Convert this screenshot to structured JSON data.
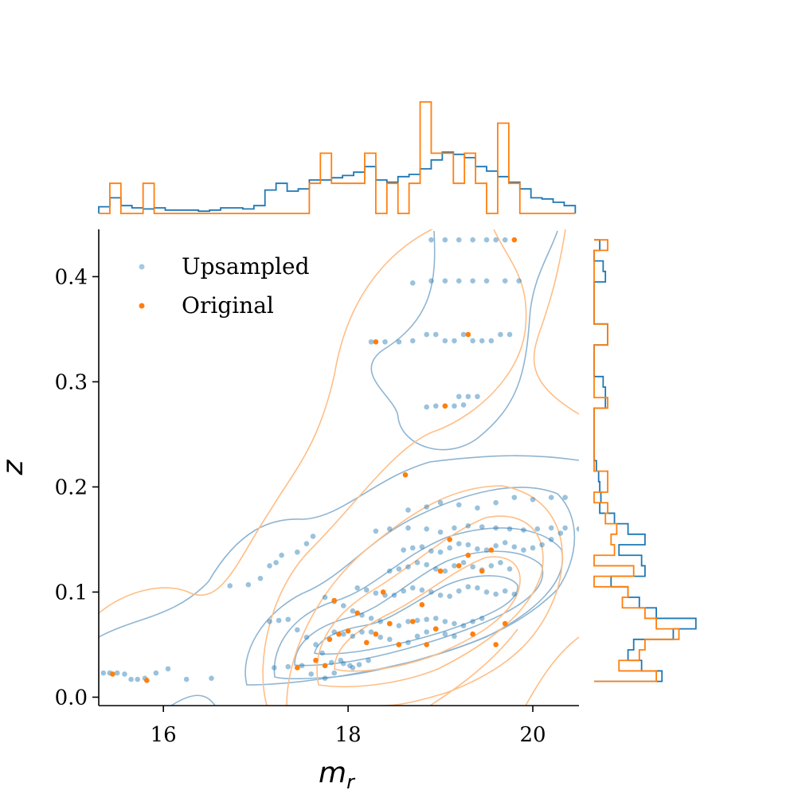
{
  "chart_data": {
    "type": "scatter",
    "title": "",
    "xlabel": "m",
    "xlabel_sub": "r",
    "ylabel": "z",
    "xlim": [
      15.3,
      20.5
    ],
    "ylim": [
      -0.008,
      0.445
    ],
    "x_ticks": [
      16,
      18,
      20
    ],
    "x_tick_labels": [
      "16",
      "18",
      "20"
    ],
    "y_ticks": [
      0.0,
      0.1,
      0.2,
      0.3,
      0.4
    ],
    "y_tick_labels": [
      "0.0",
      "0.1",
      "0.2",
      "0.3",
      "0.4"
    ],
    "legend_position": "upper-left",
    "colors": {
      "upsampled": "#1f77b4",
      "original": "#ff7f0e",
      "upsampled_contour": "#8fb5d2",
      "original_contour": "#ffbe86"
    },
    "series": [
      {
        "name": "Upsampled",
        "points": [
          [
            15.35,
            0.023
          ],
          [
            15.42,
            0.023
          ],
          [
            15.5,
            0.023
          ],
          [
            15.58,
            0.022
          ],
          [
            15.65,
            0.017
          ],
          [
            15.72,
            0.017
          ],
          [
            15.8,
            0.018
          ],
          [
            15.92,
            0.023
          ],
          [
            16.05,
            0.027
          ],
          [
            16.25,
            0.017
          ],
          [
            16.52,
            0.018
          ],
          [
            16.72,
            0.106
          ],
          [
            16.92,
            0.107
          ],
          [
            17.05,
            0.113
          ],
          [
            17.15,
            0.125
          ],
          [
            17.22,
            0.128
          ],
          [
            17.28,
            0.135
          ],
          [
            17.45,
            0.138
          ],
          [
            17.55,
            0.146
          ],
          [
            17.62,
            0.153
          ],
          [
            17.15,
            0.072
          ],
          [
            17.25,
            0.073
          ],
          [
            17.35,
            0.074
          ],
          [
            17.45,
            0.064
          ],
          [
            17.55,
            0.057
          ],
          [
            17.65,
            0.05
          ],
          [
            17.72,
            0.042
          ],
          [
            17.82,
            0.033
          ],
          [
            17.92,
            0.035
          ],
          [
            18.02,
            0.03
          ],
          [
            18.12,
            0.031
          ],
          [
            18.22,
            0.035
          ],
          [
            17.2,
            0.028
          ],
          [
            17.35,
            0.029
          ],
          [
            17.5,
            0.03
          ],
          [
            17.6,
            0.022
          ],
          [
            17.75,
            0.018
          ],
          [
            17.85,
            0.023
          ],
          [
            17.95,
            0.032
          ],
          [
            18.05,
            0.028
          ],
          [
            17.75,
            0.095
          ],
          [
            17.85,
            0.091
          ],
          [
            17.95,
            0.087
          ],
          [
            18.05,
            0.082
          ],
          [
            18.15,
            0.078
          ],
          [
            18.25,
            0.075
          ],
          [
            18.35,
            0.072
          ],
          [
            18.45,
            0.07
          ],
          [
            18.55,
            0.068
          ],
          [
            18.65,
            0.072
          ],
          [
            18.75,
            0.073
          ],
          [
            18.85,
            0.074
          ],
          [
            18.95,
            0.075
          ],
          [
            19.05,
            0.072
          ],
          [
            19.15,
            0.07
          ],
          [
            19.25,
            0.068
          ],
          [
            19.35,
            0.072
          ],
          [
            19.45,
            0.075
          ],
          [
            17.85,
            0.062
          ],
          [
            17.95,
            0.06
          ],
          [
            18.05,
            0.058
          ],
          [
            18.15,
            0.062
          ],
          [
            18.25,
            0.062
          ],
          [
            18.35,
            0.057
          ],
          [
            18.45,
            0.055
          ],
          [
            18.55,
            0.05
          ],
          [
            18.65,
            0.052
          ],
          [
            18.75,
            0.058
          ],
          [
            18.85,
            0.062
          ],
          [
            18.95,
            0.065
          ],
          [
            19.05,
            0.06
          ],
          [
            19.15,
            0.058
          ],
          [
            18.1,
            0.104
          ],
          [
            18.2,
            0.102
          ],
          [
            18.3,
            0.099
          ],
          [
            18.4,
            0.097
          ],
          [
            18.5,
            0.097
          ],
          [
            18.6,
            0.101
          ],
          [
            18.7,
            0.104
          ],
          [
            18.8,
            0.102
          ],
          [
            18.9,
            0.1
          ],
          [
            19.0,
            0.097
          ],
          [
            19.1,
            0.096
          ],
          [
            19.2,
            0.101
          ],
          [
            19.3,
            0.105
          ],
          [
            19.4,
            0.104
          ],
          [
            19.5,
            0.1
          ],
          [
            19.6,
            0.098
          ],
          [
            19.7,
            0.101
          ],
          [
            19.8,
            0.098
          ],
          [
            18.45,
            0.12
          ],
          [
            18.55,
            0.122
          ],
          [
            18.65,
            0.124
          ],
          [
            18.75,
            0.128
          ],
          [
            18.85,
            0.126
          ],
          [
            18.95,
            0.122
          ],
          [
            19.05,
            0.12
          ],
          [
            19.15,
            0.125
          ],
          [
            19.25,
            0.128
          ],
          [
            19.35,
            0.124
          ],
          [
            19.45,
            0.121
          ],
          [
            19.55,
            0.125
          ],
          [
            19.65,
            0.128
          ],
          [
            19.75,
            0.122
          ],
          [
            18.6,
            0.14
          ],
          [
            18.7,
            0.142
          ],
          [
            18.8,
            0.143
          ],
          [
            18.9,
            0.139
          ],
          [
            19.0,
            0.138
          ],
          [
            19.1,
            0.142
          ],
          [
            19.2,
            0.146
          ],
          [
            19.3,
            0.145
          ],
          [
            19.4,
            0.141
          ],
          [
            19.5,
            0.14
          ],
          [
            19.6,
            0.144
          ],
          [
            19.7,
            0.147
          ],
          [
            19.8,
            0.143
          ],
          [
            19.9,
            0.14
          ],
          [
            20.0,
            0.142
          ],
          [
            20.1,
            0.145
          ],
          [
            20.2,
            0.15
          ],
          [
            20.3,
            0.156
          ],
          [
            18.3,
            0.158
          ],
          [
            18.45,
            0.16
          ],
          [
            18.65,
            0.161
          ],
          [
            18.85,
            0.16
          ],
          [
            19.0,
            0.157
          ],
          [
            19.15,
            0.161
          ],
          [
            19.3,
            0.163
          ],
          [
            19.45,
            0.162
          ],
          [
            19.6,
            0.161
          ],
          [
            19.75,
            0.16
          ],
          [
            19.9,
            0.159
          ],
          [
            20.05,
            0.16
          ],
          [
            20.2,
            0.161
          ],
          [
            20.35,
            0.161
          ],
          [
            20.5,
            0.16
          ],
          [
            18.65,
            0.178
          ],
          [
            18.85,
            0.181
          ],
          [
            19.0,
            0.185
          ],
          [
            19.2,
            0.183
          ],
          [
            19.4,
            0.18
          ],
          [
            19.6,
            0.185
          ],
          [
            19.8,
            0.19
          ],
          [
            20.0,
            0.188
          ],
          [
            20.2,
            0.19
          ],
          [
            20.35,
            0.19
          ],
          [
            18.85,
            0.276
          ],
          [
            18.95,
            0.277
          ],
          [
            19.05,
            0.277
          ],
          [
            19.15,
            0.277
          ],
          [
            19.25,
            0.278
          ],
          [
            19.2,
            0.286
          ],
          [
            19.3,
            0.286
          ],
          [
            19.4,
            0.286
          ],
          [
            18.25,
            0.338
          ],
          [
            18.4,
            0.338
          ],
          [
            18.55,
            0.338
          ],
          [
            18.7,
            0.339
          ],
          [
            18.85,
            0.345
          ],
          [
            18.95,
            0.345
          ],
          [
            19.05,
            0.339
          ],
          [
            19.15,
            0.339
          ],
          [
            19.25,
            0.345
          ],
          [
            19.35,
            0.339
          ],
          [
            19.45,
            0.339
          ],
          [
            19.55,
            0.339
          ],
          [
            19.65,
            0.345
          ],
          [
            19.75,
            0.345
          ],
          [
            18.7,
            0.394
          ],
          [
            18.9,
            0.396
          ],
          [
            19.05,
            0.396
          ],
          [
            19.2,
            0.396
          ],
          [
            19.35,
            0.396
          ],
          [
            19.5,
            0.396
          ],
          [
            19.7,
            0.396
          ],
          [
            19.85,
            0.396
          ],
          [
            18.9,
            0.435
          ],
          [
            19.05,
            0.435
          ],
          [
            19.2,
            0.435
          ],
          [
            19.35,
            0.435
          ],
          [
            19.5,
            0.435
          ],
          [
            19.6,
            0.435
          ],
          [
            19.7,
            0.435
          ]
        ]
      },
      {
        "name": "Original",
        "points": [
          [
            15.45,
            0.022
          ],
          [
            15.82,
            0.016
          ],
          [
            17.45,
            0.028
          ],
          [
            17.65,
            0.035
          ],
          [
            17.75,
            0.03
          ],
          [
            17.8,
            0.055
          ],
          [
            17.85,
            0.092
          ],
          [
            17.9,
            0.06
          ],
          [
            18.0,
            0.063
          ],
          [
            18.1,
            0.08
          ],
          [
            18.2,
            0.052
          ],
          [
            18.3,
            0.06
          ],
          [
            18.38,
            0.1
          ],
          [
            18.45,
            0.07
          ],
          [
            18.55,
            0.05
          ],
          [
            18.62,
            0.2115
          ],
          [
            18.7,
            0.072
          ],
          [
            18.8,
            0.088
          ],
          [
            18.85,
            0.05
          ],
          [
            18.95,
            0.065
          ],
          [
            19.0,
            0.12
          ],
          [
            19.1,
            0.15
          ],
          [
            19.2,
            0.125
          ],
          [
            19.3,
            0.135
          ],
          [
            19.35,
            0.06
          ],
          [
            19.45,
            0.12
          ],
          [
            19.55,
            0.14
          ],
          [
            19.6,
            0.05
          ],
          [
            19.7,
            0.07
          ],
          [
            19.05,
            0.277
          ],
          [
            19.3,
            0.345
          ],
          [
            18.3,
            0.338
          ],
          [
            19.8,
            0.435
          ]
        ]
      }
    ],
    "marginal_top": {
      "bin_edges": [
        15.3,
        15.42,
        15.54,
        15.66,
        15.78,
        15.9,
        16.02,
        16.14,
        16.26,
        16.38,
        16.5,
        16.62,
        16.74,
        16.86,
        16.98,
        17.1,
        17.22,
        17.34,
        17.46,
        17.58,
        17.7,
        17.82,
        17.94,
        18.06,
        18.18,
        18.3,
        18.42,
        18.54,
        18.66,
        18.78,
        18.9,
        19.02,
        19.14,
        19.26,
        19.38,
        19.5,
        19.62,
        19.74,
        19.86,
        19.98,
        20.1,
        20.22,
        20.34,
        20.46
      ],
      "upsampled": [
        0.06,
        0.14,
        0.07,
        0.05,
        0.04,
        0.05,
        0.03,
        0.03,
        0.03,
        0.02,
        0.03,
        0.05,
        0.05,
        0.04,
        0.07,
        0.21,
        0.27,
        0.2,
        0.22,
        0.3,
        0.3,
        0.32,
        0.34,
        0.37,
        0.42,
        0.3,
        0.28,
        0.33,
        0.35,
        0.4,
        0.48,
        0.55,
        0.53,
        0.5,
        0.42,
        0.38,
        0.33,
        0.28,
        0.22,
        0.14,
        0.13,
        0.1,
        0.07
      ],
      "original": [
        0.0,
        0.27,
        0.0,
        0.0,
        0.27,
        0.0,
        0.0,
        0.0,
        0.0,
        0.0,
        0.0,
        0.0,
        0.0,
        0.0,
        0.0,
        0.0,
        0.0,
        0.0,
        0.0,
        0.27,
        0.54,
        0.27,
        0.27,
        0.27,
        0.54,
        0.0,
        0.27,
        0.0,
        0.27,
        1.0,
        0.54,
        0.54,
        0.27,
        0.54,
        0.27,
        0.0,
        0.81,
        0.27,
        0.0,
        0.0,
        0.0,
        0.0,
        0.0
      ]
    },
    "marginal_right": {
      "bin_edges": [
        0.015,
        0.025,
        0.035,
        0.045,
        0.055,
        0.065,
        0.075,
        0.085,
        0.095,
        0.105,
        0.115,
        0.125,
        0.135,
        0.145,
        0.155,
        0.165,
        0.175,
        0.185,
        0.195,
        0.205,
        0.215,
        0.225,
        0.235,
        0.245,
        0.255,
        0.265,
        0.275,
        0.285,
        0.295,
        0.305,
        0.315,
        0.325,
        0.335,
        0.345,
        0.355,
        0.365,
        0.375,
        0.385,
        0.395,
        0.405,
        0.415,
        0.425,
        0.435
      ],
      "upsampled": [
        0.6,
        0.42,
        0.3,
        0.35,
        0.7,
        0.9,
        0.55,
        0.4,
        0.3,
        0.15,
        0.45,
        0.42,
        0.22,
        0.45,
        0.3,
        0.18,
        0.05,
        0.06,
        0.05,
        0.04,
        0.02,
        0.0,
        0.0,
        0.0,
        0.0,
        0.0,
        0.1,
        0.1,
        0.08,
        0.0,
        0.0,
        0.0,
        0.12,
        0.12,
        0.0,
        0.0,
        0.0,
        0.0,
        0.1,
        0.08,
        0.0,
        0.05
      ],
      "original": [
        0.55,
        0.22,
        0.4,
        0.45,
        0.75,
        0.55,
        0.45,
        0.25,
        0.3,
        0.0,
        0.35,
        0.0,
        0.18,
        0.15,
        0.2,
        0.1,
        0.12,
        0.0,
        0.12,
        0.12,
        0.0,
        0.0,
        0.0,
        0.0,
        0.0,
        0.0,
        0.12,
        0.0,
        0.0,
        0.0,
        0.0,
        0.0,
        0.12,
        0.12,
        0.0,
        0.0,
        0.0,
        0.0,
        0.0,
        0.0,
        0.0,
        0.12
      ]
    }
  }
}
